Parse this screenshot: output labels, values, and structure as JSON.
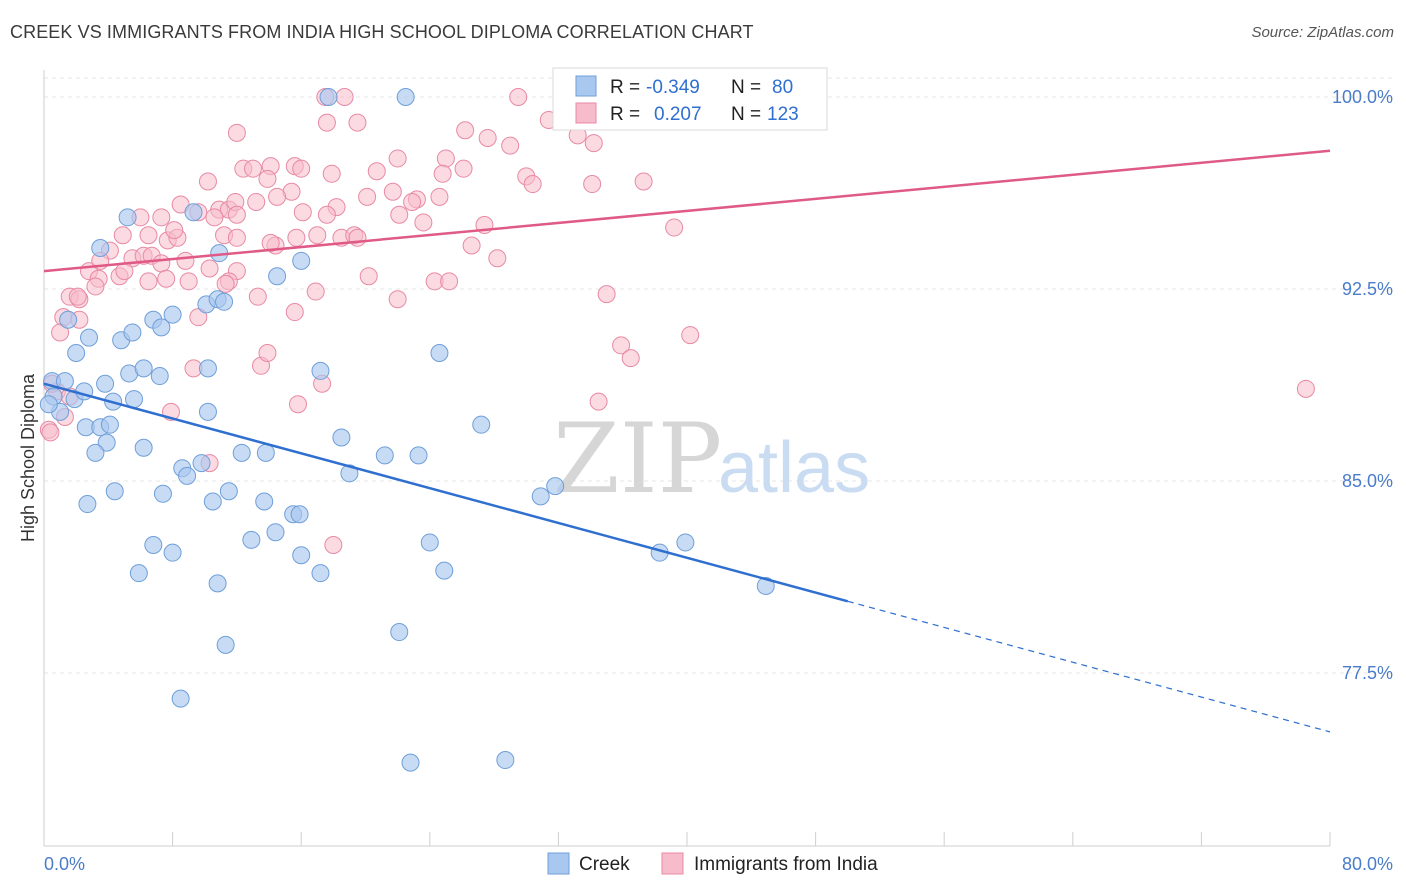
{
  "title": "CREEK VS IMMIGRANTS FROM INDIA HIGH SCHOOL DIPLOMA CORRELATION CHART",
  "source": "Source: ZipAtlas.com",
  "watermark": {
    "zip": "ZIP",
    "atlas": "atlas"
  },
  "colors": {
    "creek_fill": "#a9c8f0",
    "creek_stroke": "#6f9fd8",
    "creek_line": "#2f6fd0",
    "india_fill": "#f7bccb",
    "india_stroke": "#e88aa4",
    "india_line": "#e05a86",
    "grid": "#e4e4e4",
    "tick_label": "#4a7cc9"
  },
  "legend": {
    "rows": [
      {
        "r_label": "R =",
        "r_value": "-0.349",
        "n_label": "N =",
        "n_value": "80"
      },
      {
        "r_label": "R =",
        "r_value": "0.207",
        "n_label": "N =",
        "n_value": "123"
      }
    ]
  },
  "bottom_legend": [
    "Creek",
    "Immigrants from India"
  ],
  "chart_data": {
    "type": "scatter",
    "title": "CREEK VS IMMIGRANTS FROM INDIA HIGH SCHOOL DIPLOMA CORRELATION CHART",
    "xlabel": "",
    "ylabel": "High School Diploma",
    "xlim": [
      0,
      80
    ],
    "ylim": [
      71,
      100.5
    ],
    "x_tick_labels": [
      "0.0%",
      "80.0%"
    ],
    "y_ticks": [
      77.5,
      85.0,
      92.5,
      100.0
    ],
    "y_tick_labels": [
      "77.5%",
      "85.0%",
      "92.5%",
      "100.0%"
    ],
    "grid": true,
    "legend_position": "top-center",
    "series": [
      {
        "name": "Creek",
        "r": -0.349,
        "n": 80,
        "trend": {
          "x0": 0,
          "y0": 88.8,
          "x1": 50,
          "y1": 80.3,
          "dashed_to_x": 80,
          "dashed_to_y": 75.2
        },
        "points": [
          [
            22.5,
            100.0
          ],
          [
            17.7,
            100.0
          ],
          [
            0.5,
            88.9
          ],
          [
            1.3,
            88.9
          ],
          [
            0.6,
            88.3
          ],
          [
            1.0,
            87.7
          ],
          [
            1.9,
            88.2
          ],
          [
            2.5,
            88.5
          ],
          [
            3.8,
            88.8
          ],
          [
            2.0,
            90.0
          ],
          [
            2.8,
            90.6
          ],
          [
            1.5,
            91.3
          ],
          [
            4.8,
            90.5
          ],
          [
            5.5,
            90.8
          ],
          [
            6.8,
            91.3
          ],
          [
            7.3,
            91.0
          ],
          [
            8.0,
            91.5
          ],
          [
            5.3,
            89.2
          ],
          [
            6.2,
            89.4
          ],
          [
            7.2,
            89.1
          ],
          [
            4.3,
            88.1
          ],
          [
            5.6,
            88.2
          ],
          [
            2.6,
            87.1
          ],
          [
            3.5,
            87.1
          ],
          [
            4.1,
            87.2
          ],
          [
            3.9,
            86.5
          ],
          [
            3.2,
            86.1
          ],
          [
            6.2,
            86.3
          ],
          [
            10.2,
            89.4
          ],
          [
            10.2,
            87.7
          ],
          [
            8.6,
            85.5
          ],
          [
            8.9,
            85.2
          ],
          [
            9.8,
            85.7
          ],
          [
            7.4,
            84.5
          ],
          [
            11.5,
            84.6
          ],
          [
            13.8,
            86.1
          ],
          [
            12.3,
            86.1
          ],
          [
            4.4,
            84.6
          ],
          [
            2.7,
            84.1
          ],
          [
            10.5,
            84.2
          ],
          [
            13.7,
            84.2
          ],
          [
            15.5,
            83.7
          ],
          [
            15.9,
            83.7
          ],
          [
            19.0,
            85.3
          ],
          [
            17.2,
            89.3
          ],
          [
            21.2,
            86.0
          ],
          [
            23.3,
            86.0
          ],
          [
            24.6,
            90.0
          ],
          [
            27.2,
            87.2
          ],
          [
            18.5,
            86.7
          ],
          [
            12.9,
            82.7
          ],
          [
            14.4,
            83.0
          ],
          [
            16.0,
            82.1
          ],
          [
            6.8,
            82.5
          ],
          [
            8.0,
            82.2
          ],
          [
            5.9,
            81.4
          ],
          [
            10.8,
            81.0
          ],
          [
            11.3,
            78.6
          ],
          [
            17.2,
            81.4
          ],
          [
            24.0,
            82.6
          ],
          [
            24.9,
            81.5
          ],
          [
            22.1,
            79.1
          ],
          [
            30.9,
            84.4
          ],
          [
            31.8,
            84.8
          ],
          [
            38.3,
            82.2
          ],
          [
            39.9,
            82.6
          ],
          [
            44.9,
            80.9
          ],
          [
            8.5,
            76.5
          ],
          [
            22.8,
            74.0
          ],
          [
            28.7,
            74.1
          ],
          [
            5.2,
            95.3
          ],
          [
            10.9,
            93.9
          ],
          [
            9.3,
            95.5
          ],
          [
            14.5,
            93.0
          ],
          [
            16.0,
            93.6
          ],
          [
            3.5,
            94.1
          ],
          [
            10.1,
            91.9
          ],
          [
            10.8,
            92.1
          ],
          [
            11.2,
            92.0
          ],
          [
            0.3,
            88.0
          ]
        ]
      },
      {
        "name": "Immigrants from India",
        "r": 0.207,
        "n": 123,
        "trend": {
          "x0": 0,
          "y0": 93.2,
          "x1": 80,
          "y1": 97.9
        },
        "points": [
          [
            17.5,
            100.0
          ],
          [
            18.7,
            100.0
          ],
          [
            29.5,
            100.0
          ],
          [
            17.6,
            99.0
          ],
          [
            19.5,
            99.0
          ],
          [
            31.4,
            99.1
          ],
          [
            26.2,
            98.7
          ],
          [
            33.2,
            98.5
          ],
          [
            34.2,
            98.2
          ],
          [
            12.0,
            98.6
          ],
          [
            27.6,
            98.4
          ],
          [
            29.0,
            98.1
          ],
          [
            22.0,
            97.6
          ],
          [
            25.0,
            97.6
          ],
          [
            26.1,
            97.2
          ],
          [
            20.7,
            97.1
          ],
          [
            12.4,
            97.2
          ],
          [
            13.0,
            97.2
          ],
          [
            14.1,
            97.3
          ],
          [
            15.6,
            97.3
          ],
          [
            16.0,
            97.2
          ],
          [
            17.9,
            97.0
          ],
          [
            24.8,
            97.0
          ],
          [
            30.0,
            96.9
          ],
          [
            30.4,
            96.6
          ],
          [
            10.2,
            96.7
          ],
          [
            13.9,
            96.8
          ],
          [
            15.4,
            96.3
          ],
          [
            14.5,
            96.1
          ],
          [
            20.1,
            96.1
          ],
          [
            21.7,
            96.3
          ],
          [
            23.2,
            96.0
          ],
          [
            34.1,
            96.6
          ],
          [
            37.3,
            96.7
          ],
          [
            8.5,
            95.8
          ],
          [
            9.6,
            95.5
          ],
          [
            10.9,
            95.6
          ],
          [
            11.5,
            95.6
          ],
          [
            11.9,
            95.9
          ],
          [
            13.2,
            95.9
          ],
          [
            16.1,
            95.5
          ],
          [
            18.2,
            95.7
          ],
          [
            22.1,
            95.4
          ],
          [
            23.6,
            95.1
          ],
          [
            7.3,
            95.3
          ],
          [
            4.9,
            94.6
          ],
          [
            6.5,
            94.6
          ],
          [
            7.7,
            94.4
          ],
          [
            8.3,
            94.5
          ],
          [
            11.2,
            94.6
          ],
          [
            12.0,
            94.5
          ],
          [
            14.4,
            94.2
          ],
          [
            15.7,
            94.5
          ],
          [
            17.0,
            94.6
          ],
          [
            18.5,
            94.5
          ],
          [
            19.3,
            94.6
          ],
          [
            26.6,
            94.2
          ],
          [
            39.2,
            94.9
          ],
          [
            4.1,
            94.0
          ],
          [
            5.5,
            93.7
          ],
          [
            6.2,
            93.8
          ],
          [
            6.7,
            93.8
          ],
          [
            7.3,
            93.5
          ],
          [
            8.8,
            93.6
          ],
          [
            10.3,
            93.3
          ],
          [
            12.0,
            93.2
          ],
          [
            2.8,
            93.2
          ],
          [
            3.4,
            92.9
          ],
          [
            4.7,
            93.0
          ],
          [
            5.0,
            93.2
          ],
          [
            6.5,
            92.8
          ],
          [
            7.6,
            92.9
          ],
          [
            9.0,
            92.8
          ],
          [
            11.5,
            92.8
          ],
          [
            28.2,
            93.7
          ],
          [
            20.2,
            93.0
          ],
          [
            24.3,
            92.8
          ],
          [
            1.6,
            92.2
          ],
          [
            2.2,
            92.1
          ],
          [
            3.2,
            92.6
          ],
          [
            13.3,
            92.2
          ],
          [
            22.0,
            92.1
          ],
          [
            35.0,
            92.3
          ],
          [
            1.2,
            91.4
          ],
          [
            2.2,
            91.3
          ],
          [
            1.0,
            90.8
          ],
          [
            9.6,
            91.4
          ],
          [
            15.6,
            91.6
          ],
          [
            40.2,
            90.7
          ],
          [
            35.9,
            90.3
          ],
          [
            36.5,
            89.8
          ],
          [
            13.5,
            89.5
          ],
          [
            9.3,
            89.4
          ],
          [
            13.9,
            90.0
          ],
          [
            17.3,
            88.8
          ],
          [
            15.8,
            88.0
          ],
          [
            34.5,
            88.1
          ],
          [
            78.5,
            88.6
          ],
          [
            0.3,
            87.0
          ],
          [
            1.3,
            87.5
          ],
          [
            7.9,
            87.7
          ],
          [
            10.3,
            85.7
          ],
          [
            18.0,
            82.5
          ],
          [
            0.8,
            88.5
          ],
          [
            0.5,
            88.8
          ],
          [
            1.6,
            88.3
          ],
          [
            0.4,
            86.9
          ],
          [
            11.3,
            92.7
          ],
          [
            17.6,
            95.4
          ],
          [
            14.1,
            94.3
          ],
          [
            19.5,
            94.5
          ],
          [
            22.9,
            95.9
          ],
          [
            16.9,
            92.4
          ],
          [
            25.2,
            92.8
          ],
          [
            27.4,
            95.0
          ],
          [
            24.6,
            96.1
          ],
          [
            10.6,
            95.3
          ],
          [
            6.0,
            95.3
          ],
          [
            12.0,
            95.4
          ],
          [
            2.1,
            92.2
          ],
          [
            3.5,
            93.6
          ],
          [
            8.1,
            94.8
          ]
        ]
      }
    ]
  }
}
